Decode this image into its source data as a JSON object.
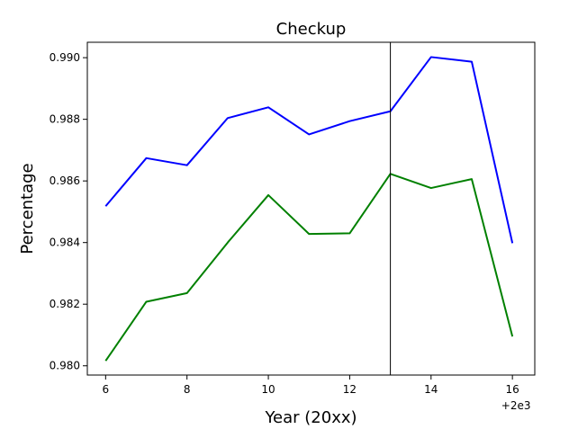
{
  "chart_data": {
    "type": "line",
    "title": "Checkup",
    "xlabel": "Year (20xx)",
    "ylabel": "Percentage",
    "x_offset_label": "+2e3",
    "x": [
      6,
      7,
      8,
      9,
      10,
      11,
      12,
      13,
      14,
      15,
      16
    ],
    "xlim": [
      5.55,
      16.55
    ],
    "ylim": [
      0.9797,
      0.9905
    ],
    "x_ticks": [
      6,
      8,
      10,
      12,
      14,
      16
    ],
    "x_tick_labels": [
      "6",
      "8",
      "10",
      "12",
      "14",
      "16"
    ],
    "y_ticks": [
      0.98,
      0.982,
      0.984,
      0.986,
      0.988,
      0.99
    ],
    "y_tick_labels": [
      "0.980",
      "0.982",
      "0.984",
      "0.986",
      "0.988",
      "0.990"
    ],
    "vline_x": 13,
    "vline_color": "#000000",
    "grid": false,
    "series": [
      {
        "color": "#0000ff",
        "values": [
          0.98518,
          0.98674,
          0.98651,
          0.98804,
          0.98839,
          0.98751,
          0.98794,
          0.98826,
          0.99002,
          0.98987,
          0.98398
        ]
      },
      {
        "color": "#008000",
        "values": [
          0.98016,
          0.98208,
          0.98236,
          0.984,
          0.98554,
          0.98428,
          0.9843,
          0.98623,
          0.98577,
          0.98606,
          0.98095
        ]
      }
    ]
  }
}
